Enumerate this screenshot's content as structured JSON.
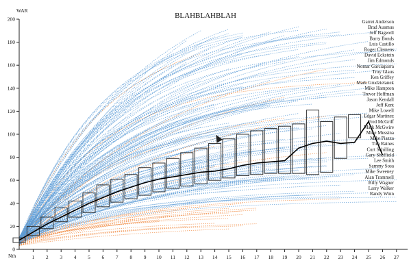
{
  "chart_data": {
    "type": "line",
    "title": "BLAHBLAHBLAH",
    "ylabel": "WAR",
    "xlabel": "Nth",
    "ylim": [
      0,
      200
    ],
    "yticks": [
      0,
      20,
      40,
      60,
      80,
      100,
      120,
      140,
      160,
      180,
      200
    ],
    "xlim": [
      0,
      28
    ],
    "xticks": [
      1,
      2,
      3,
      4,
      5,
      6,
      7,
      8,
      9,
      10,
      11,
      12,
      13,
      14,
      15,
      16,
      17,
      18,
      19,
      20,
      21,
      22,
      23,
      24,
      25,
      26,
      27
    ],
    "grid": false,
    "colors": {
      "hof": "#5b9bd5",
      "non_hof": "#f0883e",
      "median": "#000000",
      "box": "#333333"
    },
    "median": {
      "x": [
        0,
        1,
        2,
        3,
        4,
        5,
        6,
        7,
        8,
        9,
        10,
        11,
        12,
        13,
        14,
        15,
        16,
        17,
        18,
        19,
        20,
        21,
        22,
        23,
        24,
        25,
        26
      ],
      "y": [
        8,
        15,
        22,
        28,
        34,
        40,
        45,
        50,
        54,
        58,
        61,
        63,
        65,
        67,
        68,
        70,
        73,
        75,
        76,
        77,
        88,
        92,
        94,
        92,
        93,
        111,
        82
      ]
    },
    "boxes": [
      {
        "x": 0,
        "q1": 6,
        "q3": 10
      },
      {
        "x": 1,
        "q1": 12,
        "q3": 20
      },
      {
        "x": 2,
        "q1": 18,
        "q3": 28
      },
      {
        "x": 3,
        "q1": 24,
        "q3": 36
      },
      {
        "x": 4,
        "q1": 28,
        "q3": 42
      },
      {
        "x": 5,
        "q1": 32,
        "q3": 49
      },
      {
        "x": 6,
        "q1": 37,
        "q3": 56
      },
      {
        "x": 7,
        "q1": 41,
        "q3": 61
      },
      {
        "x": 8,
        "q1": 44,
        "q3": 65
      },
      {
        "x": 9,
        "q1": 47,
        "q3": 71
      },
      {
        "x": 10,
        "q1": 50,
        "q3": 75
      },
      {
        "x": 11,
        "q1": 53,
        "q3": 79
      },
      {
        "x": 12,
        "q1": 55,
        "q3": 84
      },
      {
        "x": 13,
        "q1": 57,
        "q3": 88
      },
      {
        "x": 14,
        "q1": 60,
        "q3": 92
      },
      {
        "x": 15,
        "q1": 62,
        "q3": 96
      },
      {
        "x": 16,
        "q1": 64,
        "q3": 100
      },
      {
        "x": 17,
        "q1": 65,
        "q3": 103
      },
      {
        "x": 18,
        "q1": 66,
        "q3": 105
      },
      {
        "x": 19,
        "q1": 66,
        "q3": 107
      },
      {
        "x": 20,
        "q1": 66,
        "q3": 109
      },
      {
        "x": 21,
        "q1": 65,
        "q3": 121
      },
      {
        "x": 22,
        "q1": 67,
        "q3": 111
      },
      {
        "x": 23,
        "q1": 79,
        "q3": 115
      },
      {
        "x": 24,
        "q1": 97,
        "q3": 117
      }
    ],
    "players": [
      "Garret Anderson",
      "Brad Ausmus",
      "Jeff Bagwell",
      "Barry Bonds",
      "Luis Castillo",
      "Roger Clemens",
      "David Eckstein",
      "Jim Edmonds",
      "Nomar Garciaparra",
      "Troy Glaus",
      "Ken Griffey",
      "Mark Grudzielanek",
      "Mike Hampton",
      "Trevor Hoffman",
      "Jason Kendall",
      "Jeff Kent",
      "Mike Lowell",
      "Edgar Martinez",
      "Fred McGriff",
      "Mark McGwire",
      "Mike Mussina",
      "Mike Piazza",
      "Tim Raines",
      "Curt Schilling",
      "Gary Sheffield",
      "Lee Smith",
      "Sammy Sosa",
      "Mike Sweeney",
      "Alan Trammell",
      "Billy Wagner",
      "Larry Walker",
      "Randy Winn"
    ]
  }
}
